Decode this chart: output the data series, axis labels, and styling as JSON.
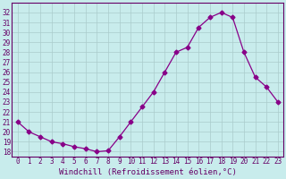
{
  "x": [
    0,
    1,
    2,
    3,
    4,
    5,
    6,
    7,
    8,
    9,
    10,
    11,
    12,
    13,
    14,
    15,
    16,
    17,
    18,
    19,
    20,
    21,
    22,
    23
  ],
  "y": [
    21.0,
    20.0,
    19.5,
    19.0,
    18.8,
    18.5,
    18.3,
    18.0,
    18.1,
    19.5,
    21.0,
    22.5,
    24.0,
    26.0,
    28.0,
    28.5,
    30.5,
    31.5,
    32.0,
    31.5,
    28.0,
    25.5,
    24.5,
    23.0
  ],
  "line_color": "#880088",
  "marker": "D",
  "marker_size": 2.5,
  "bg_color": "#c8ecec",
  "grid_color": "#aacccc",
  "xlabel": "Windchill (Refroidissement éolien,°C)",
  "xlim": [
    -0.5,
    23.5
  ],
  "ylim": [
    17.5,
    33.0
  ],
  "yticks": [
    18,
    19,
    20,
    21,
    22,
    23,
    24,
    25,
    26,
    27,
    28,
    29,
    30,
    31,
    32
  ],
  "xticks": [
    0,
    1,
    2,
    3,
    4,
    5,
    6,
    7,
    8,
    9,
    10,
    11,
    12,
    13,
    14,
    15,
    16,
    17,
    18,
    19,
    20,
    21,
    22,
    23
  ],
  "tick_fontsize": 5.5,
  "label_fontsize": 6.5,
  "tick_color": "#660066",
  "label_color": "#660066",
  "spine_color": "#660066"
}
